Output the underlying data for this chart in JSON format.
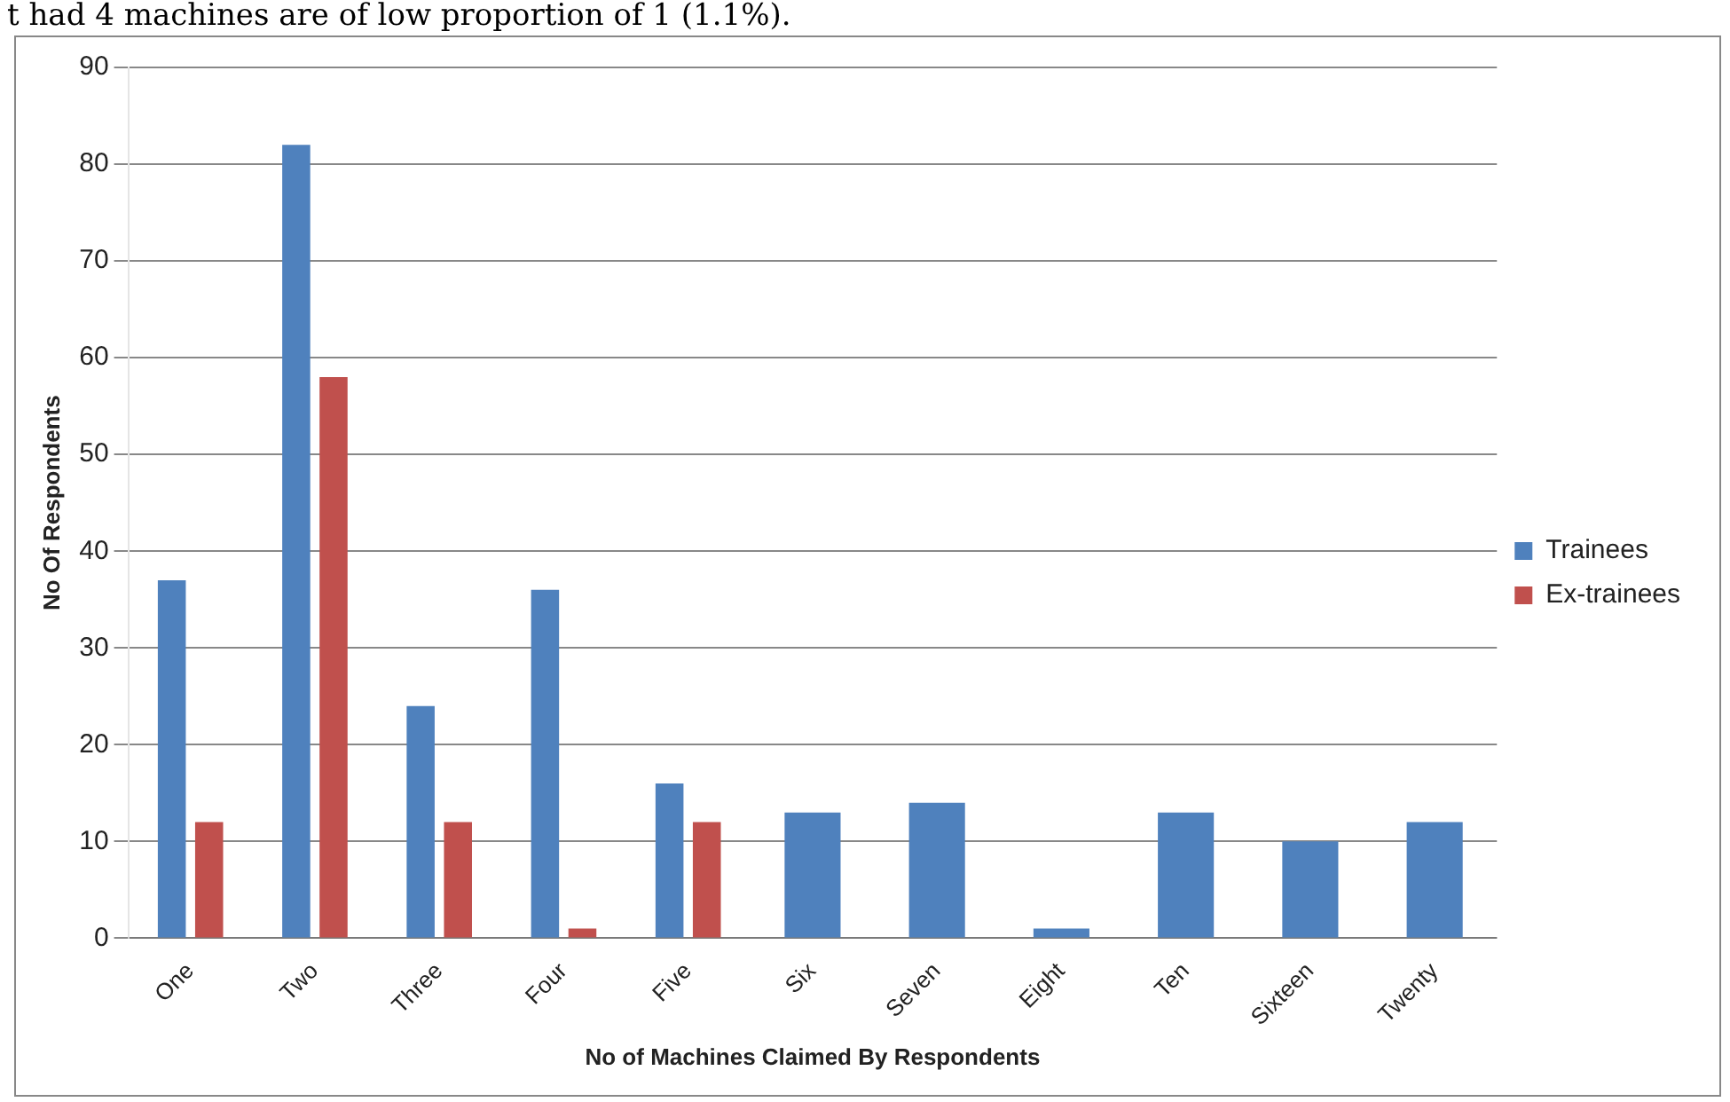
{
  "chart_data": {
    "type": "bar",
    "xlabel": "No of Machines Claimed By Respondents",
    "ylabel": "No Of Respondents",
    "annotations": [
      "t had 4 machines are of low proportion of 1 (1.1%)."
    ],
    "categories": [
      "One",
      "Two",
      "Three",
      "Four",
      "Five",
      "Six",
      "Seven",
      "Eight",
      "Ten",
      "Sixteen",
      "Twenty"
    ],
    "series": [
      {
        "name": "Trainees",
        "color": "#4f81bd",
        "values": [
          37,
          82,
          24,
          36,
          16,
          13,
          14,
          1,
          13,
          10,
          12
        ]
      },
      {
        "name": "Ex-trainees",
        "color": "#c0504d",
        "values": [
          12,
          58,
          12,
          1,
          12,
          null,
          null,
          null,
          null,
          null,
          null
        ]
      }
    ],
    "ylim": [
      0,
      90
    ],
    "yticks": [
      0,
      10,
      20,
      30,
      40,
      50,
      60,
      70,
      80,
      90
    ],
    "grid": "y",
    "legend": "right"
  }
}
